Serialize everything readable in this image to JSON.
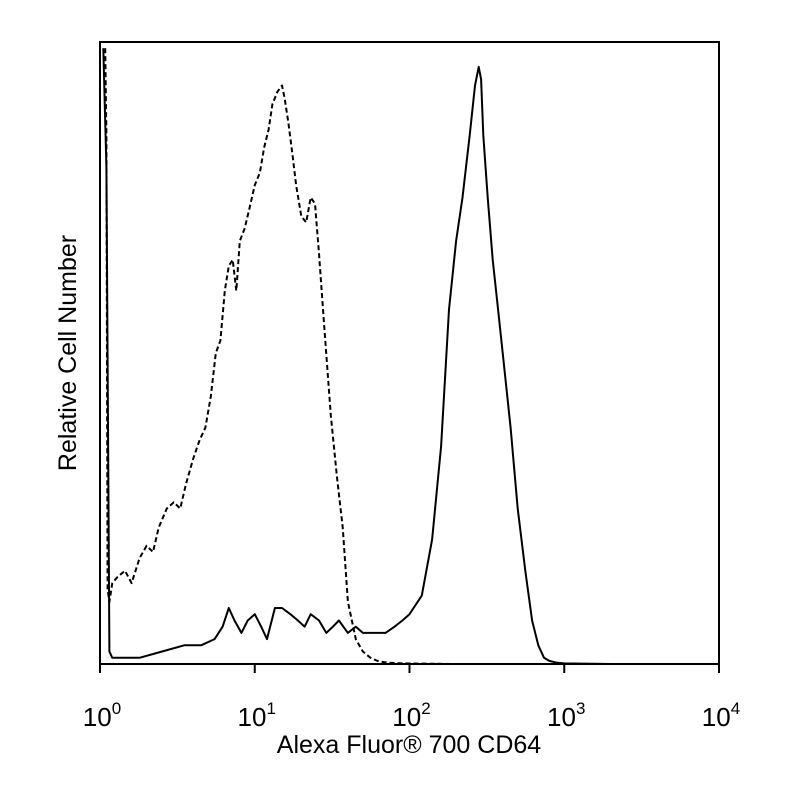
{
  "chart_data": {
    "type": "line",
    "xscale": "log",
    "xlim": [
      1,
      10000
    ],
    "ylim": [
      0,
      100
    ],
    "grid": false,
    "legend": "none",
    "xlabel": "Alexa Fluor® 700 CD64",
    "ylabel": "Relative Cell Number",
    "xticks": [
      {
        "base": "10",
        "exp": "0",
        "value": 1
      },
      {
        "base": "10",
        "exp": "1",
        "value": 10
      },
      {
        "base": "10",
        "exp": "2",
        "value": 100
      },
      {
        "base": "10",
        "exp": "3",
        "value": 1000
      },
      {
        "base": "10",
        "exp": "4",
        "value": 10000
      }
    ],
    "series": [
      {
        "style": "dashed",
        "color": "#000000",
        "x": [
          1.08,
          1.1,
          1.12,
          1.15,
          1.2,
          1.3,
          1.45,
          1.6,
          1.8,
          2.0,
          2.2,
          2.4,
          2.7,
          3.0,
          3.3,
          3.6,
          4.0,
          4.4,
          4.8,
          5.2,
          5.6,
          6.0,
          6.4,
          6.8,
          7.2,
          7.6,
          8.0,
          8.6,
          9.2,
          10.0,
          10.8,
          11.5,
          12.3,
          13.0,
          14.0,
          15.0,
          15.6,
          16.5,
          17.5,
          18.5,
          20.0,
          21.5,
          23.0,
          24.5,
          26.0,
          28.0,
          31.0,
          34.0,
          37.0,
          40.0,
          45.0,
          50.0,
          56.0,
          62.0,
          68.0,
          75.0,
          90.0,
          200.0,
          1000.0,
          10000.0
        ],
        "y": [
          99,
          85,
          12,
          10,
          13,
          14,
          15,
          13,
          17,
          19,
          18,
          22,
          25,
          26,
          25,
          29,
          33,
          36,
          38,
          43,
          50,
          52,
          60,
          64,
          65,
          60,
          68,
          70,
          73,
          77,
          79,
          83,
          86,
          90,
          92,
          93,
          91,
          87,
          82,
          77,
          72,
          71,
          75,
          74,
          66,
          55,
          40,
          30,
          22,
          10,
          4,
          2,
          1,
          0.5,
          0.3,
          0.2,
          0.1,
          0,
          0,
          0
        ]
      },
      {
        "style": "solid",
        "color": "#000000",
        "x": [
          1.05,
          1.1,
          1.15,
          1.2,
          1.4,
          1.8,
          2.5,
          3.5,
          4.5,
          5.5,
          6.2,
          6.8,
          7.4,
          8.2,
          9.0,
          10.0,
          11.0,
          12.0,
          13.5,
          15.0,
          17.0,
          19.0,
          21.0,
          23.0,
          26.0,
          29.0,
          32.0,
          35.0,
          40.0,
          45.0,
          50.0,
          55.0,
          62.0,
          70.0,
          80.0,
          90.0,
          100.0,
          120.0,
          140.0,
          160.0,
          180.0,
          200.0,
          220.0,
          245.0,
          265.0,
          280.0,
          290.0,
          300.0,
          320.0,
          345.0,
          370.0,
          400.0,
          450.0,
          500.0,
          560.0,
          620.0,
          680.0,
          740.0,
          800.0,
          900.0,
          1000.0,
          2000.0,
          5000.0,
          10000.0
        ],
        "y": [
          99,
          80,
          2,
          1,
          1,
          1,
          2,
          3,
          3,
          4,
          6,
          9,
          7,
          5,
          7,
          8,
          6,
          4,
          9,
          9,
          8,
          7,
          6,
          8,
          7,
          5,
          6,
          7,
          5,
          6,
          5,
          5,
          5,
          5,
          6,
          7,
          8,
          11,
          20,
          35,
          57,
          68,
          75,
          85,
          93,
          96,
          94,
          85,
          75,
          65,
          58,
          50,
          38,
          25,
          15,
          7,
          3,
          1,
          0.5,
          0.2,
          0.1,
          0,
          0,
          0
        ]
      }
    ]
  }
}
